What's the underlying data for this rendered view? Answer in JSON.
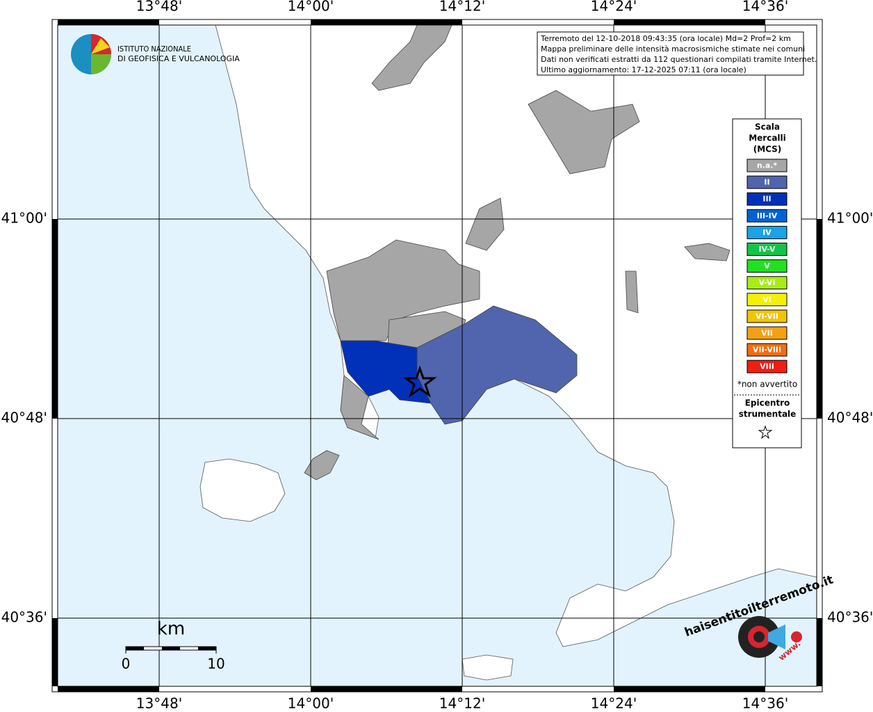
{
  "header": {
    "institute": [
      "ISTITUTO NAZIONALE",
      "DI GEOFISICA E VULCANOLOGIA"
    ],
    "info": [
      "Terremoto del 12-10-2018 09:43:35 (ora locale) Md=2 Prof=2 km",
      "Mappa preliminare delle intensità macrosismiche stimate nei comuni",
      "Dati non verificati estratti da 112 questionari compilati tramite Internet.",
      "Ultimo aggiornamento: 17-12-2025 07:11 (ora locale)"
    ]
  },
  "map": {
    "lon_ticks": [
      {
        "value": 13.8,
        "label": "13°48'"
      },
      {
        "value": 14.0,
        "label": "14°00'"
      },
      {
        "value": 14.2,
        "label": "14°12'"
      },
      {
        "value": 14.4,
        "label": "14°24'"
      },
      {
        "value": 14.6,
        "label": "14°36'"
      }
    ],
    "lat_ticks": [
      {
        "value": 41.0,
        "label": "41°00'"
      },
      {
        "value": 40.8,
        "label": "40°48'"
      },
      {
        "value": 40.6,
        "label": "40°36'"
      }
    ],
    "scale": {
      "unit": "km",
      "ticks": [
        0,
        10
      ]
    }
  },
  "legend": {
    "title": [
      "Scala",
      "Mercalli",
      "(MCS)"
    ],
    "classes": [
      {
        "label": "n.a.*",
        "color": "#a6a6a6"
      },
      {
        "label": "II",
        "color": "#5065ad"
      },
      {
        "label": "III",
        "color": "#0031b8"
      },
      {
        "label": "III-IV",
        "color": "#0062d2"
      },
      {
        "label": "IV",
        "color": "#1aa3e6"
      },
      {
        "label": "IV-V",
        "color": "#12c447"
      },
      {
        "label": "V",
        "color": "#22e022"
      },
      {
        "label": "V-VI",
        "color": "#a6ee12"
      },
      {
        "label": "VI",
        "color": "#f2f200"
      },
      {
        "label": "VI-VII",
        "color": "#f2c400"
      },
      {
        "label": "VII",
        "color": "#f5a014"
      },
      {
        "label": "VII-VIII",
        "color": "#f26c10"
      },
      {
        "label": "VIII",
        "color": "#f01e10"
      }
    ],
    "note": "*non avvertito",
    "epicenter": [
      "Epicentro",
      "strumentale"
    ]
  },
  "watermark": {
    "site": "haisentitoilterremoto.it",
    "prefix": "www."
  }
}
